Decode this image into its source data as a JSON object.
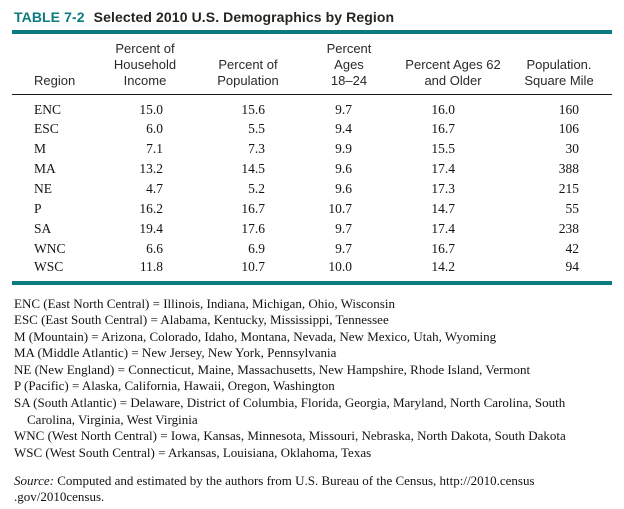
{
  "colors": {
    "accent_teal": "#0B7B7F",
    "title_text": "#26251F",
    "rule_black": "#1B1B1B"
  },
  "caption": {
    "number_label": "TABLE 7-2",
    "title": "Selected 2010 U.S. Demographics by Region"
  },
  "table": {
    "headers": [
      {
        "lines": [
          "Region"
        ]
      },
      {
        "lines": [
          "Percent of",
          "Household",
          "Income"
        ]
      },
      {
        "lines": [
          "Percent of",
          "Population"
        ]
      },
      {
        "lines": [
          "Percent",
          "Ages",
          "18–24"
        ]
      },
      {
        "lines": [
          "Percent Ages 62",
          "and Older"
        ]
      },
      {
        "lines": [
          "Population.",
          "Square Mile"
        ]
      }
    ],
    "rows": [
      [
        "ENC",
        "15.0",
        "15.6",
        "9.7",
        "16.0",
        "160"
      ],
      [
        "ESC",
        "6.0",
        "5.5",
        "9.4",
        "16.7",
        "106"
      ],
      [
        "M",
        "7.1",
        "7.3",
        "9.9",
        "15.5",
        "30"
      ],
      [
        "MA",
        "13.2",
        "14.5",
        "9.6",
        "17.4",
        "388"
      ],
      [
        "NE",
        "4.7",
        "5.2",
        "9.6",
        "17.3",
        "215"
      ],
      [
        "P",
        "16.2",
        "16.7",
        "10.7",
        "14.7",
        "55"
      ],
      [
        "SA",
        "19.4",
        "17.6",
        "9.7",
        "17.4",
        "238"
      ],
      [
        "WNC",
        "6.6",
        "6.9",
        "9.7",
        "16.7",
        "42"
      ],
      [
        "WSC",
        "11.8",
        "10.7",
        "10.0",
        "14.2",
        "94"
      ]
    ]
  },
  "footnotes": [
    "ENC (East North Central) = Illinois, Indiana, Michigan, Ohio, Wisconsin",
    "ESC (East South Central) = Alabama, Kentucky, Mississippi, Tennessee",
    "M (Mountain) = Arizona, Colorado, Idaho, Montana, Nevada, New Mexico, Utah, Wyoming",
    "MA (Middle Atlantic) = New Jersey, New York, Pennsylvania",
    "NE (New England) = Connecticut, Maine, Massachusetts, New Hampshire, Rhode Island, Vermont",
    "P (Pacific) = Alaska, California, Hawaii, Oregon, Washington",
    "SA (South Atlantic) = Delaware, District of Columbia, Florida, Georgia, Maryland, North Carolina, South Carolina, Virginia, West Virginia",
    "WNC (West North Central) = Iowa, Kansas, Minnesota, Missouri, Nebraska, North Dakota, South Dakota",
    "WSC (West South Central) = Arkansas, Louisiana, Oklahoma, Texas"
  ],
  "source": {
    "label": "Source:",
    "line1": "Computed and estimated by the authors from U.S. Bureau of the Census, http://2010.census",
    "line2": ".gov/2010census."
  }
}
